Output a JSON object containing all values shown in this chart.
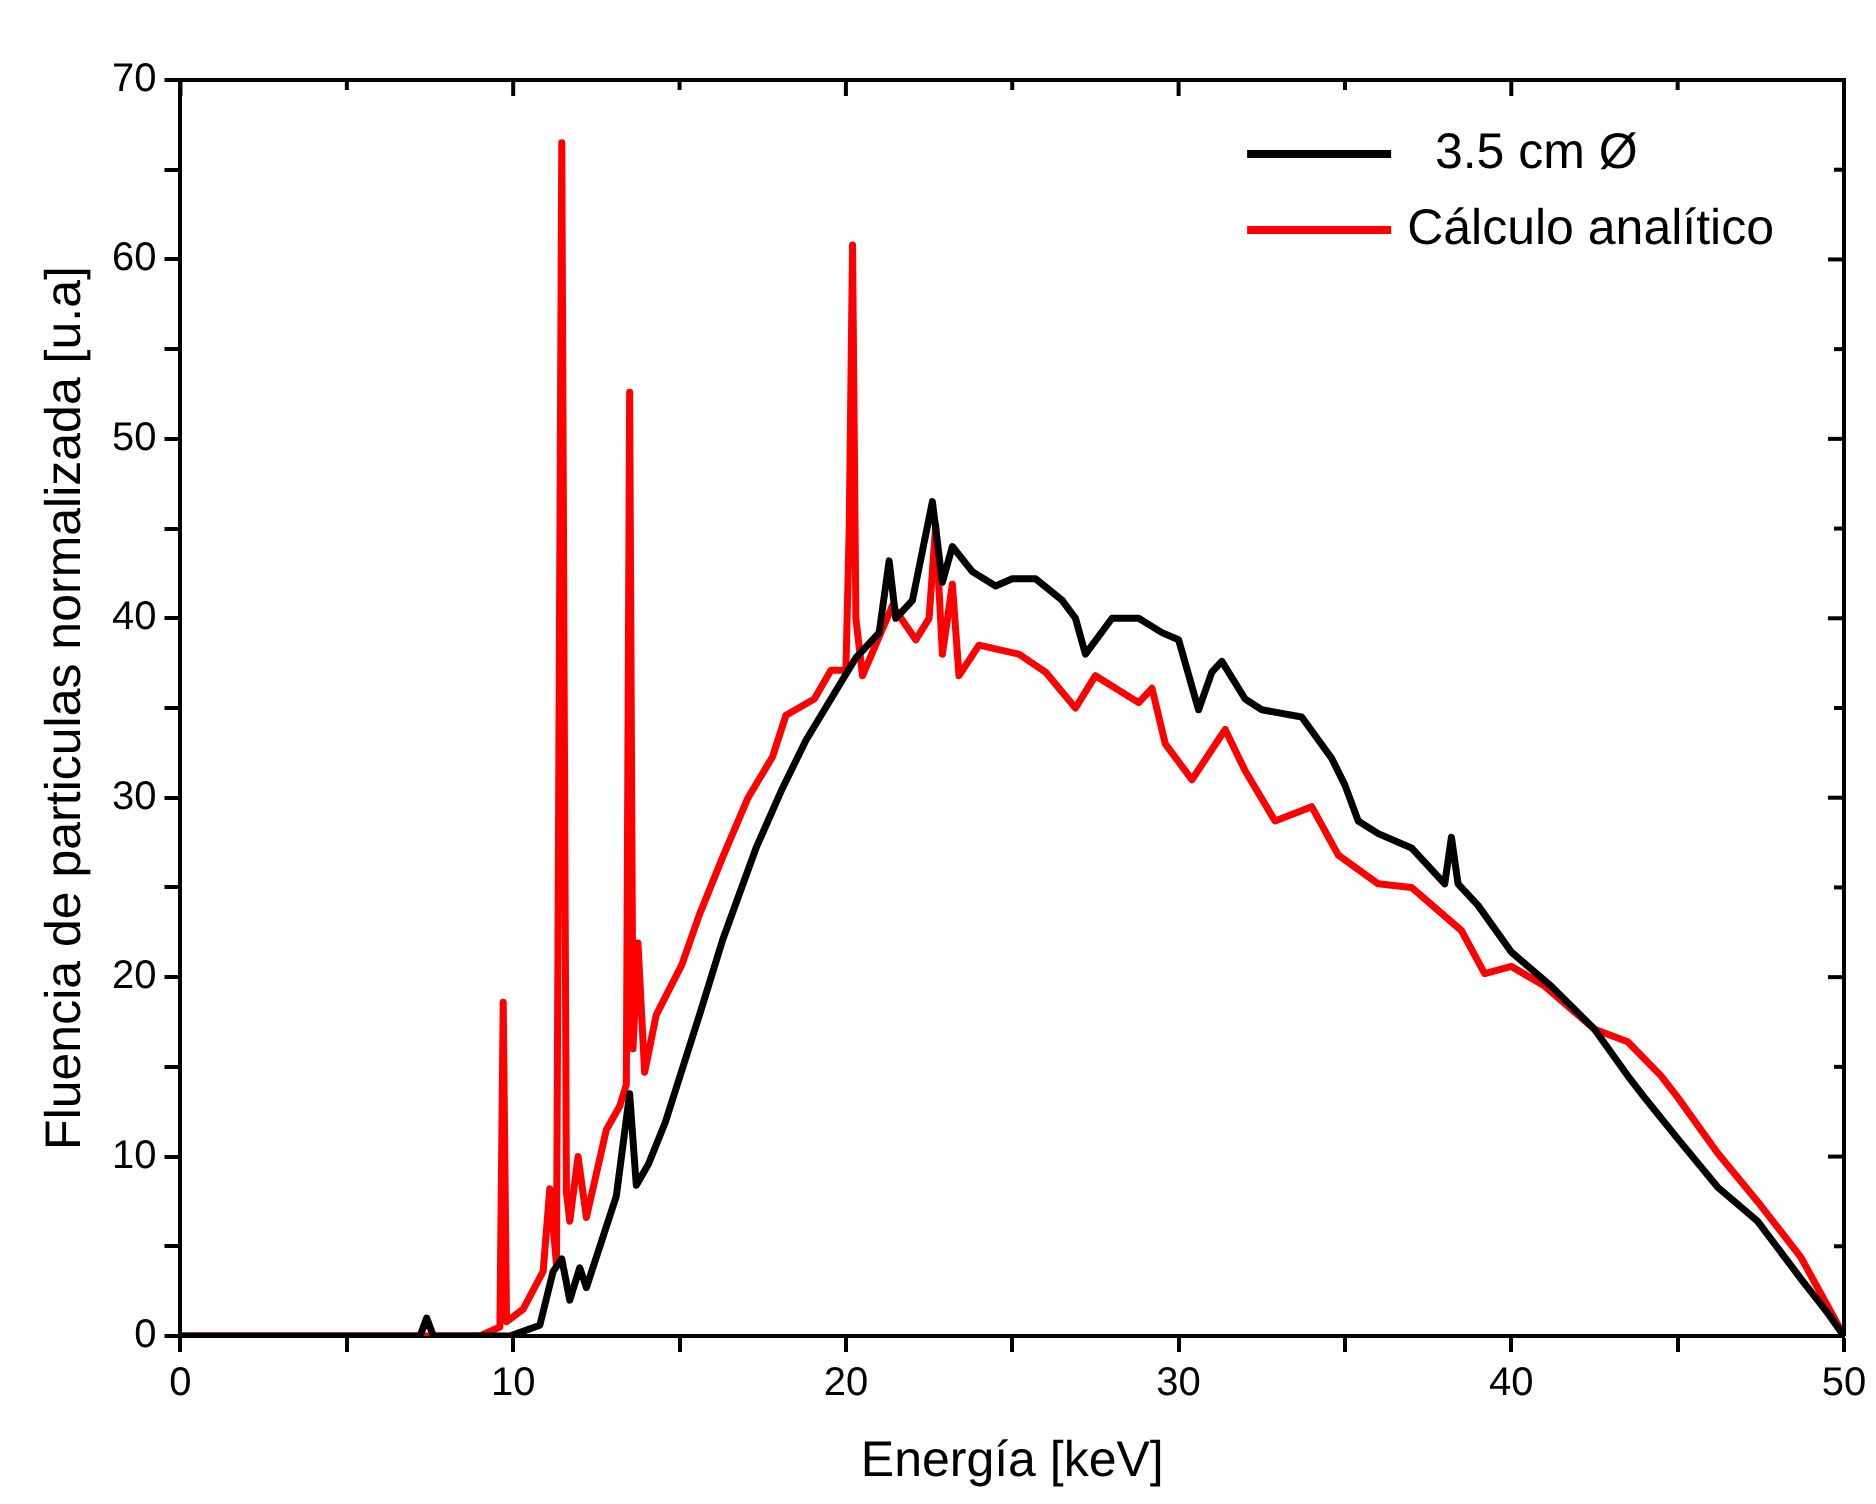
{
  "chart_data": {
    "type": "line",
    "xlabel": "Energía [keV]",
    "ylabel": "Fluencia de particulas normalizada [u.a]",
    "legend": "top right",
    "grid": false,
    "marker": "none",
    "line_style": "solid",
    "xlim": [
      0,
      50
    ],
    "xticks": [
      0,
      {
        "value": 5,
        "label": null
      },
      10,
      {
        "value": 15,
        "label": null
      },
      20,
      {
        "value": 25,
        "label": null
      },
      30,
      {
        "value": 35,
        "label": null
      },
      40,
      {
        "value": 45,
        "label": null
      },
      50
    ],
    "ylim": [
      0,
      70
    ],
    "yticks": [
      0,
      {
        "value": 5,
        "label": null
      },
      10,
      {
        "value": 15,
        "label": null
      },
      20,
      {
        "value": 25,
        "label": null
      },
      30,
      {
        "value": 35,
        "label": null
      },
      40,
      {
        "value": 45,
        "label": null
      },
      50,
      {
        "value": 55,
        "label": null
      },
      60,
      {
        "value": 65,
        "label": null
      },
      70
    ],
    "series": [
      {
        "name": "  3.5 cm Ø",
        "color": "#000000",
        "x": [
          0,
          7.2,
          7.4,
          7.6,
          9.9,
          10.8,
          11.2,
          11.46,
          11.7,
          12.0,
          12.2,
          13.1,
          13.5,
          13.7,
          14.07,
          14.57,
          15.6,
          16.3,
          17.3,
          18.06,
          18.8,
          19.55,
          20.3,
          21.0,
          21.3,
          21.5,
          22.0,
          22.6,
          22.9,
          23.2,
          23.8,
          24.5,
          25.0,
          25.7,
          26.5,
          26.9,
          27.2,
          28.0,
          28.8,
          29.5,
          30.0,
          30.6,
          31.0,
          31.3,
          32.0,
          32.5,
          33.7,
          34.6,
          35.0,
          35.4,
          36.0,
          37.0,
          38.0,
          38.2,
          38.4,
          39.0,
          40.0,
          41.2,
          42.5,
          43.5,
          44.0,
          45.0,
          46.2,
          47.4,
          48.7,
          49.5,
          50
        ],
        "values": [
          0,
          0,
          1.0,
          0,
          0,
          0.6,
          3.6,
          4.3,
          2,
          3.8,
          2.7,
          7.8,
          13.5,
          8.4,
          9.6,
          11.9,
          17.9,
          22.1,
          27.2,
          30.4,
          33.2,
          35.5,
          37.8,
          39.2,
          43.2,
          40,
          41,
          46.5,
          42,
          44,
          42.6,
          41.8,
          42.2,
          42.2,
          41,
          40,
          38,
          40,
          40,
          39.2,
          38.8,
          34.9,
          37,
          37.6,
          35.5,
          34.9,
          34.5,
          32.2,
          30.7,
          28.7,
          28,
          27.2,
          25.2,
          27.8,
          25.2,
          24,
          21.4,
          19.5,
          17.1,
          14.5,
          13.3,
          11,
          8.3,
          6.4,
          3.2,
          1.3,
          0
        ]
      },
      {
        "name": "Cálculo analítico",
        "color": "#ff0000",
        "x": [
          0,
          9.0,
          9.6,
          9.7,
          9.8,
          10.3,
          10.9,
          11.1,
          11.3,
          11.46,
          11.6,
          11.7,
          11.95,
          12.2,
          12.8,
          13.2,
          13.4,
          13.5,
          13.6,
          13.75,
          13.95,
          14.3,
          15.07,
          15.6,
          16.3,
          17.06,
          17.8,
          18.2,
          19.05,
          19.55,
          20.0,
          20.1,
          20.2,
          20.3,
          20.5,
          21.4,
          22.1,
          22.5,
          22.7,
          22.9,
          23.2,
          23.4,
          24.0,
          25.2,
          26.0,
          26.9,
          27.5,
          28.8,
          29.2,
          29.6,
          30.4,
          31.4,
          32.0,
          32.9,
          34.0,
          34.8,
          36.0,
          37.0,
          38.5,
          39.2,
          40.0,
          41.0,
          42.5,
          43.5,
          44.5,
          45.0,
          46.2,
          47.4,
          48.7,
          49.5,
          50
        ],
        "values": [
          0,
          0,
          0.5,
          18.6,
          0.8,
          1.5,
          3.6,
          8.2,
          4,
          66.5,
          8,
          6.4,
          10,
          6.6,
          11.5,
          12.8,
          14,
          52.6,
          16,
          21.9,
          14.7,
          17.9,
          20.7,
          23.5,
          26.7,
          30,
          32.3,
          34.6,
          35.5,
          37.1,
          37.1,
          45,
          60.8,
          40,
          36.8,
          40.7,
          38.8,
          40,
          45.2,
          38,
          41.9,
          36.8,
          38.5,
          38,
          37,
          35,
          36.8,
          35.3,
          36.1,
          33,
          31,
          33.8,
          31.5,
          28.7,
          29.5,
          26.8,
          25.2,
          25,
          22.6,
          20.2,
          20.6,
          19.5,
          17.1,
          16.4,
          14.5,
          13.3,
          10.2,
          7.5,
          4.4,
          1.7,
          0
        ]
      }
    ]
  }
}
